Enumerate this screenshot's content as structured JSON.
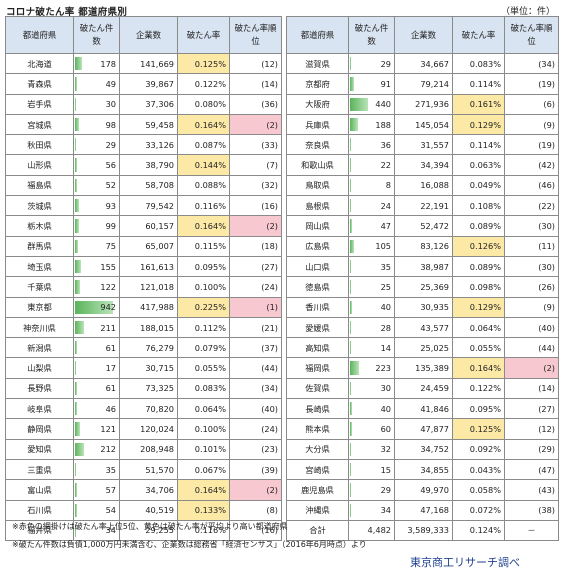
{
  "title": "コロナ破たん率 都道府県別",
  "unit": "（単位：件）",
  "headers": {
    "pref": "都道府県",
    "count": "破たん件数",
    "firms": "企業数",
    "rate": "破たん率",
    "rank": "破たん率順位"
  },
  "max_count": 942,
  "left_rows": [
    {
      "pref": "北海道",
      "count": "178",
      "firms": "141,669",
      "rate": "0.125%",
      "rank": "(12)",
      "hl_rate": true,
      "hl_rank": false
    },
    {
      "pref": "青森県",
      "count": "49",
      "firms": "39,867",
      "rate": "0.122%",
      "rank": "(14)",
      "hl_rate": false,
      "hl_rank": false
    },
    {
      "pref": "岩手県",
      "count": "30",
      "firms": "37,306",
      "rate": "0.080%",
      "rank": "(36)",
      "hl_rate": false,
      "hl_rank": false
    },
    {
      "pref": "宮城県",
      "count": "98",
      "firms": "59,458",
      "rate": "0.164%",
      "rank": "(2)",
      "hl_rate": true,
      "hl_rank": true
    },
    {
      "pref": "秋田県",
      "count": "29",
      "firms": "33,126",
      "rate": "0.087%",
      "rank": "(33)",
      "hl_rate": false,
      "hl_rank": false
    },
    {
      "pref": "山形県",
      "count": "56",
      "firms": "38,790",
      "rate": "0.144%",
      "rank": "(7)",
      "hl_rate": true,
      "hl_rank": false
    },
    {
      "pref": "福島県",
      "count": "52",
      "firms": "58,708",
      "rate": "0.088%",
      "rank": "(32)",
      "hl_rate": false,
      "hl_rank": false
    },
    {
      "pref": "茨城県",
      "count": "93",
      "firms": "79,542",
      "rate": "0.116%",
      "rank": "(16)",
      "hl_rate": false,
      "hl_rank": false
    },
    {
      "pref": "栃木県",
      "count": "99",
      "firms": "60,157",
      "rate": "0.164%",
      "rank": "(2)",
      "hl_rate": true,
      "hl_rank": true
    },
    {
      "pref": "群馬県",
      "count": "75",
      "firms": "65,007",
      "rate": "0.115%",
      "rank": "(18)",
      "hl_rate": false,
      "hl_rank": false
    },
    {
      "pref": "埼玉県",
      "count": "155",
      "firms": "161,613",
      "rate": "0.095%",
      "rank": "(27)",
      "hl_rate": false,
      "hl_rank": false
    },
    {
      "pref": "千葉県",
      "count": "122",
      "firms": "121,018",
      "rate": "0.100%",
      "rank": "(24)",
      "hl_rate": false,
      "hl_rank": false
    },
    {
      "pref": "東京都",
      "count": "942",
      "firms": "417,988",
      "rate": "0.225%",
      "rank": "(1)",
      "hl_rate": true,
      "hl_rank": true
    },
    {
      "pref": "神奈川県",
      "count": "211",
      "firms": "188,015",
      "rate": "0.112%",
      "rank": "(21)",
      "hl_rate": false,
      "hl_rank": false
    },
    {
      "pref": "新潟県",
      "count": "61",
      "firms": "76,279",
      "rate": "0.079%",
      "rank": "(37)",
      "hl_rate": false,
      "hl_rank": false
    },
    {
      "pref": "山梨県",
      "count": "17",
      "firms": "30,715",
      "rate": "0.055%",
      "rank": "(44)",
      "hl_rate": false,
      "hl_rank": false
    },
    {
      "pref": "長野県",
      "count": "61",
      "firms": "73,325",
      "rate": "0.083%",
      "rank": "(34)",
      "hl_rate": false,
      "hl_rank": false
    },
    {
      "pref": "岐阜県",
      "count": "46",
      "firms": "70,820",
      "rate": "0.064%",
      "rank": "(40)",
      "hl_rate": false,
      "hl_rank": false
    },
    {
      "pref": "静岡県",
      "count": "121",
      "firms": "120,024",
      "rate": "0.100%",
      "rank": "(24)",
      "hl_rate": false,
      "hl_rank": false
    },
    {
      "pref": "愛知県",
      "count": "212",
      "firms": "208,948",
      "rate": "0.101%",
      "rank": "(23)",
      "hl_rate": false,
      "hl_rank": false
    },
    {
      "pref": "三重県",
      "count": "35",
      "firms": "51,570",
      "rate": "0.067%",
      "rank": "(39)",
      "hl_rate": false,
      "hl_rank": false
    },
    {
      "pref": "富山県",
      "count": "57",
      "firms": "34,706",
      "rate": "0.164%",
      "rank": "(2)",
      "hl_rate": true,
      "hl_rank": true
    },
    {
      "pref": "石川県",
      "count": "54",
      "firms": "40,519",
      "rate": "0.133%",
      "rank": "(8)",
      "hl_rate": true,
      "hl_rank": false
    },
    {
      "pref": "福井県",
      "count": "34",
      "firms": "29,255",
      "rate": "0.116%",
      "rank": "(16)",
      "hl_rate": false,
      "hl_rank": false
    }
  ],
  "right_rows": [
    {
      "pref": "滋賀県",
      "count": "29",
      "firms": "34,667",
      "rate": "0.083%",
      "rank": "(34)",
      "hl_rate": false,
      "hl_rank": false
    },
    {
      "pref": "京都府",
      "count": "91",
      "firms": "79,214",
      "rate": "0.114%",
      "rank": "(19)",
      "hl_rate": false,
      "hl_rank": false
    },
    {
      "pref": "大阪府",
      "count": "440",
      "firms": "271,936",
      "rate": "0.161%",
      "rank": "(6)",
      "hl_rate": true,
      "hl_rank": false
    },
    {
      "pref": "兵庫県",
      "count": "188",
      "firms": "145,054",
      "rate": "0.129%",
      "rank": "(9)",
      "hl_rate": true,
      "hl_rank": false
    },
    {
      "pref": "奈良県",
      "count": "36",
      "firms": "31,557",
      "rate": "0.114%",
      "rank": "(19)",
      "hl_rate": false,
      "hl_rank": false
    },
    {
      "pref": "和歌山県",
      "count": "22",
      "firms": "34,394",
      "rate": "0.063%",
      "rank": "(42)",
      "hl_rate": false,
      "hl_rank": false
    },
    {
      "pref": "鳥取県",
      "count": "8",
      "firms": "16,088",
      "rate": "0.049%",
      "rank": "(46)",
      "hl_rate": false,
      "hl_rank": false
    },
    {
      "pref": "島根県",
      "count": "24",
      "firms": "22,191",
      "rate": "0.108%",
      "rank": "(22)",
      "hl_rate": false,
      "hl_rank": false
    },
    {
      "pref": "岡山県",
      "count": "47",
      "firms": "52,472",
      "rate": "0.089%",
      "rank": "(30)",
      "hl_rate": false,
      "hl_rank": false
    },
    {
      "pref": "広島県",
      "count": "105",
      "firms": "83,126",
      "rate": "0.126%",
      "rank": "(11)",
      "hl_rate": true,
      "hl_rank": false
    },
    {
      "pref": "山口県",
      "count": "35",
      "firms": "38,987",
      "rate": "0.089%",
      "rank": "(30)",
      "hl_rate": false,
      "hl_rank": false
    },
    {
      "pref": "徳島県",
      "count": "25",
      "firms": "25,369",
      "rate": "0.098%",
      "rank": "(26)",
      "hl_rate": false,
      "hl_rank": false
    },
    {
      "pref": "香川県",
      "count": "40",
      "firms": "30,935",
      "rate": "0.129%",
      "rank": "(9)",
      "hl_rate": true,
      "hl_rank": false
    },
    {
      "pref": "愛媛県",
      "count": "28",
      "firms": "43,577",
      "rate": "0.064%",
      "rank": "(40)",
      "hl_rate": false,
      "hl_rank": false
    },
    {
      "pref": "高知県",
      "count": "14",
      "firms": "25,025",
      "rate": "0.055%",
      "rank": "(44)",
      "hl_rate": false,
      "hl_rank": false
    },
    {
      "pref": "福岡県",
      "count": "223",
      "firms": "135,389",
      "rate": "0.164%",
      "rank": "(2)",
      "hl_rate": true,
      "hl_rank": true
    },
    {
      "pref": "佐賀県",
      "count": "30",
      "firms": "24,459",
      "rate": "0.122%",
      "rank": "(14)",
      "hl_rate": false,
      "hl_rank": false
    },
    {
      "pref": "長崎県",
      "count": "40",
      "firms": "41,846",
      "rate": "0.095%",
      "rank": "(27)",
      "hl_rate": false,
      "hl_rank": false
    },
    {
      "pref": "熊本県",
      "count": "60",
      "firms": "47,877",
      "rate": "0.125%",
      "rank": "(12)",
      "hl_rate": true,
      "hl_rank": false
    },
    {
      "pref": "大分県",
      "count": "32",
      "firms": "34,752",
      "rate": "0.092%",
      "rank": "(29)",
      "hl_rate": false,
      "hl_rank": false
    },
    {
      "pref": "宮崎県",
      "count": "15",
      "firms": "34,855",
      "rate": "0.043%",
      "rank": "(47)",
      "hl_rate": false,
      "hl_rank": false
    },
    {
      "pref": "鹿児島県",
      "count": "29",
      "firms": "49,970",
      "rate": "0.058%",
      "rank": "(43)",
      "hl_rate": false,
      "hl_rank": false
    },
    {
      "pref": "沖縄県",
      "count": "34",
      "firms": "47,168",
      "rate": "0.072%",
      "rank": "(38)",
      "hl_rate": false,
      "hl_rank": false
    }
  ],
  "total": {
    "label": "合計",
    "count": "4,482",
    "firms": "3,589,333",
    "rate": "0.124%",
    "rank": "－"
  },
  "notes": [
    "※赤色の網掛けは破たん率上位5位、黄色は破たん率が平均より高い都道府県",
    "※破たん件数は負債1,000万円未満含む、企業数は総務省「経済センサス」（2016年6月時点）より"
  ],
  "source": "東京商工リサーチ調べ",
  "colors": {
    "header_bg": "#d9e4f2",
    "yellow": "#fde9a6",
    "pink": "#f8c8d0",
    "bar": "#5bb35b",
    "source": "#1f3f8f"
  }
}
